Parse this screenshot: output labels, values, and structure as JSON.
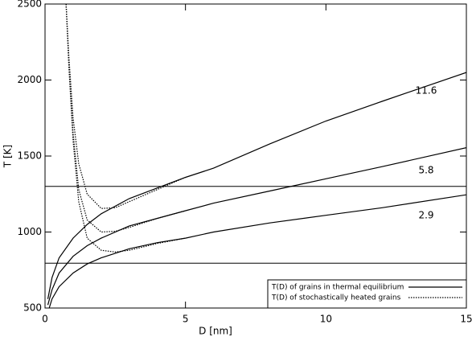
{
  "chart_data": {
    "type": "line",
    "x_label": "D  [nm]",
    "y_label": "T [K]",
    "xlim": [
      0,
      15
    ],
    "xticks": [
      0,
      5,
      10,
      15
    ],
    "ylim": [
      500,
      2500
    ],
    "yticks": [
      500,
      1000,
      1500,
      2000,
      2500
    ],
    "hlines": [
      1300,
      795
    ],
    "legend": "lower right",
    "series": [
      {
        "name": "T(D) of grains in thermal equilibrium",
        "color": "#000000",
        "style": "solid",
        "x": [
          0.1,
          0.25,
          0.5,
          1,
          1.5,
          2,
          3,
          4,
          5,
          6,
          8,
          10,
          12,
          15
        ],
        "values": [
          560,
          700,
          830,
          960,
          1050,
          1120,
          1220,
          1290,
          1360,
          1420,
          1580,
          1730,
          1860,
          2050
        ]
      },
      {
        "name": null,
        "color": "#000000",
        "style": "solid",
        "x": [
          0.1,
          0.25,
          0.5,
          1,
          1.5,
          2,
          3,
          4,
          5,
          6,
          8,
          10,
          12,
          15
        ],
        "values": [
          520,
          620,
          730,
          840,
          910,
          960,
          1040,
          1090,
          1140,
          1190,
          1270,
          1350,
          1430,
          1555
        ]
      },
      {
        "name": null,
        "color": "#000000",
        "style": "solid",
        "x": [
          0.15,
          0.25,
          0.5,
          1,
          1.5,
          2,
          3,
          4,
          5,
          6,
          8,
          10,
          12,
          15
        ],
        "values": [
          500,
          560,
          640,
          730,
          790,
          830,
          890,
          930,
          960,
          1000,
          1060,
          1110,
          1160,
          1245
        ]
      },
      {
        "name": "T(D) of stochastically heated grains",
        "color": "#000000",
        "style": "dotted",
        "x": [
          0.75,
          0.85,
          1,
          1.2,
          1.5,
          2,
          2.5,
          3,
          4,
          5
        ],
        "values": [
          2500,
          2150,
          1750,
          1450,
          1250,
          1155,
          1160,
          1200,
          1280,
          1360
        ]
      },
      {
        "name": null,
        "color": "#000000",
        "style": "dotted",
        "x": [
          0.75,
          0.85,
          1,
          1.2,
          1.5,
          2,
          2.5,
          3,
          4,
          5
        ],
        "values": [
          2500,
          2100,
          1650,
          1280,
          1080,
          1000,
          1005,
          1030,
          1090,
          1140
        ]
      },
      {
        "name": null,
        "color": "#000000",
        "style": "dotted",
        "x": [
          0.75,
          0.85,
          1,
          1.2,
          1.5,
          2,
          2.5,
          3,
          4,
          5
        ],
        "values": [
          2500,
          2080,
          1600,
          1200,
          960,
          880,
          868,
          880,
          925,
          960
        ]
      }
    ],
    "annotations": [
      "11.6",
      "5.8",
      "2.9"
    ]
  }
}
